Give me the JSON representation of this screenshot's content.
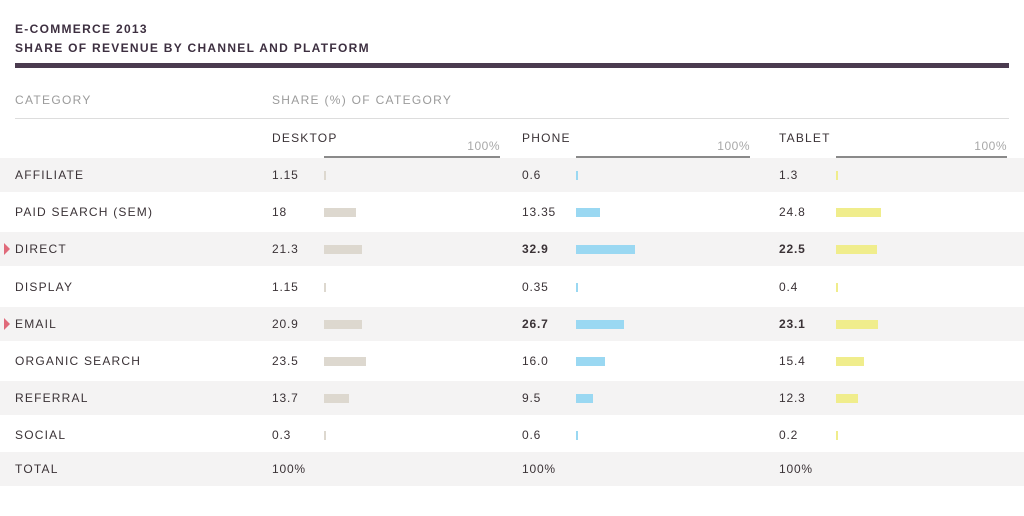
{
  "header": {
    "title": "E-COMMERCE 2013",
    "subtitle": "SHARE OF REVENUE BY CHANNEL AND PLATFORM"
  },
  "columns": {
    "category": "CATEGORY",
    "share": "SHARE (%) OF CATEGORY"
  },
  "colors": {
    "desktop": "#ddd8cf",
    "phone": "#9ad8f2",
    "tablet": "#f0ed8c",
    "marker": "#e06a7a"
  },
  "chart_data": {
    "type": "bar",
    "title": "E-COMMERCE 2013",
    "subtitle": "SHARE OF REVENUE BY CHANNEL AND PLATFORM",
    "scale_label": "100%",
    "xlim": [
      0,
      100
    ],
    "categories": [
      "AFFILIATE",
      "PAID SEARCH (SEM)",
      "DIRECT",
      "DISPLAY",
      "EMAIL",
      "ORGANIC SEARCH",
      "REFERRAL",
      "SOCIAL"
    ],
    "highlighted": [
      false,
      false,
      true,
      false,
      true,
      false,
      false,
      false
    ],
    "series": [
      {
        "name": "DESKTOP",
        "values": [
          1.15,
          18,
          21.3,
          1.15,
          20.9,
          23.5,
          13.7,
          0.3
        ],
        "labels": [
          "1.15",
          "18",
          "21.3",
          "1.15",
          "20.9",
          "23.5",
          "13.7",
          "0.3"
        ],
        "bold": [
          false,
          false,
          false,
          false,
          false,
          false,
          false,
          false
        ]
      },
      {
        "name": "PHONE",
        "values": [
          0.6,
          13.35,
          32.9,
          0.35,
          26.7,
          16.0,
          9.5,
          0.6
        ],
        "labels": [
          "0.6",
          "13.35",
          "32.9",
          "0.35",
          "26.7",
          "16.0",
          "9.5",
          "0.6"
        ],
        "bold": [
          false,
          false,
          true,
          false,
          true,
          false,
          false,
          false
        ]
      },
      {
        "name": "TABLET",
        "values": [
          1.3,
          24.8,
          22.5,
          0.4,
          23.1,
          15.4,
          12.3,
          0.2
        ],
        "labels": [
          "1.3",
          "24.8",
          "22.5",
          "0.4",
          "23.1",
          "15.4",
          "12.3",
          "0.2"
        ],
        "bold": [
          false,
          false,
          true,
          false,
          true,
          false,
          false,
          false
        ]
      }
    ],
    "total": {
      "label": "TOTAL",
      "values": [
        "100%",
        "100%",
        "100%"
      ]
    }
  }
}
